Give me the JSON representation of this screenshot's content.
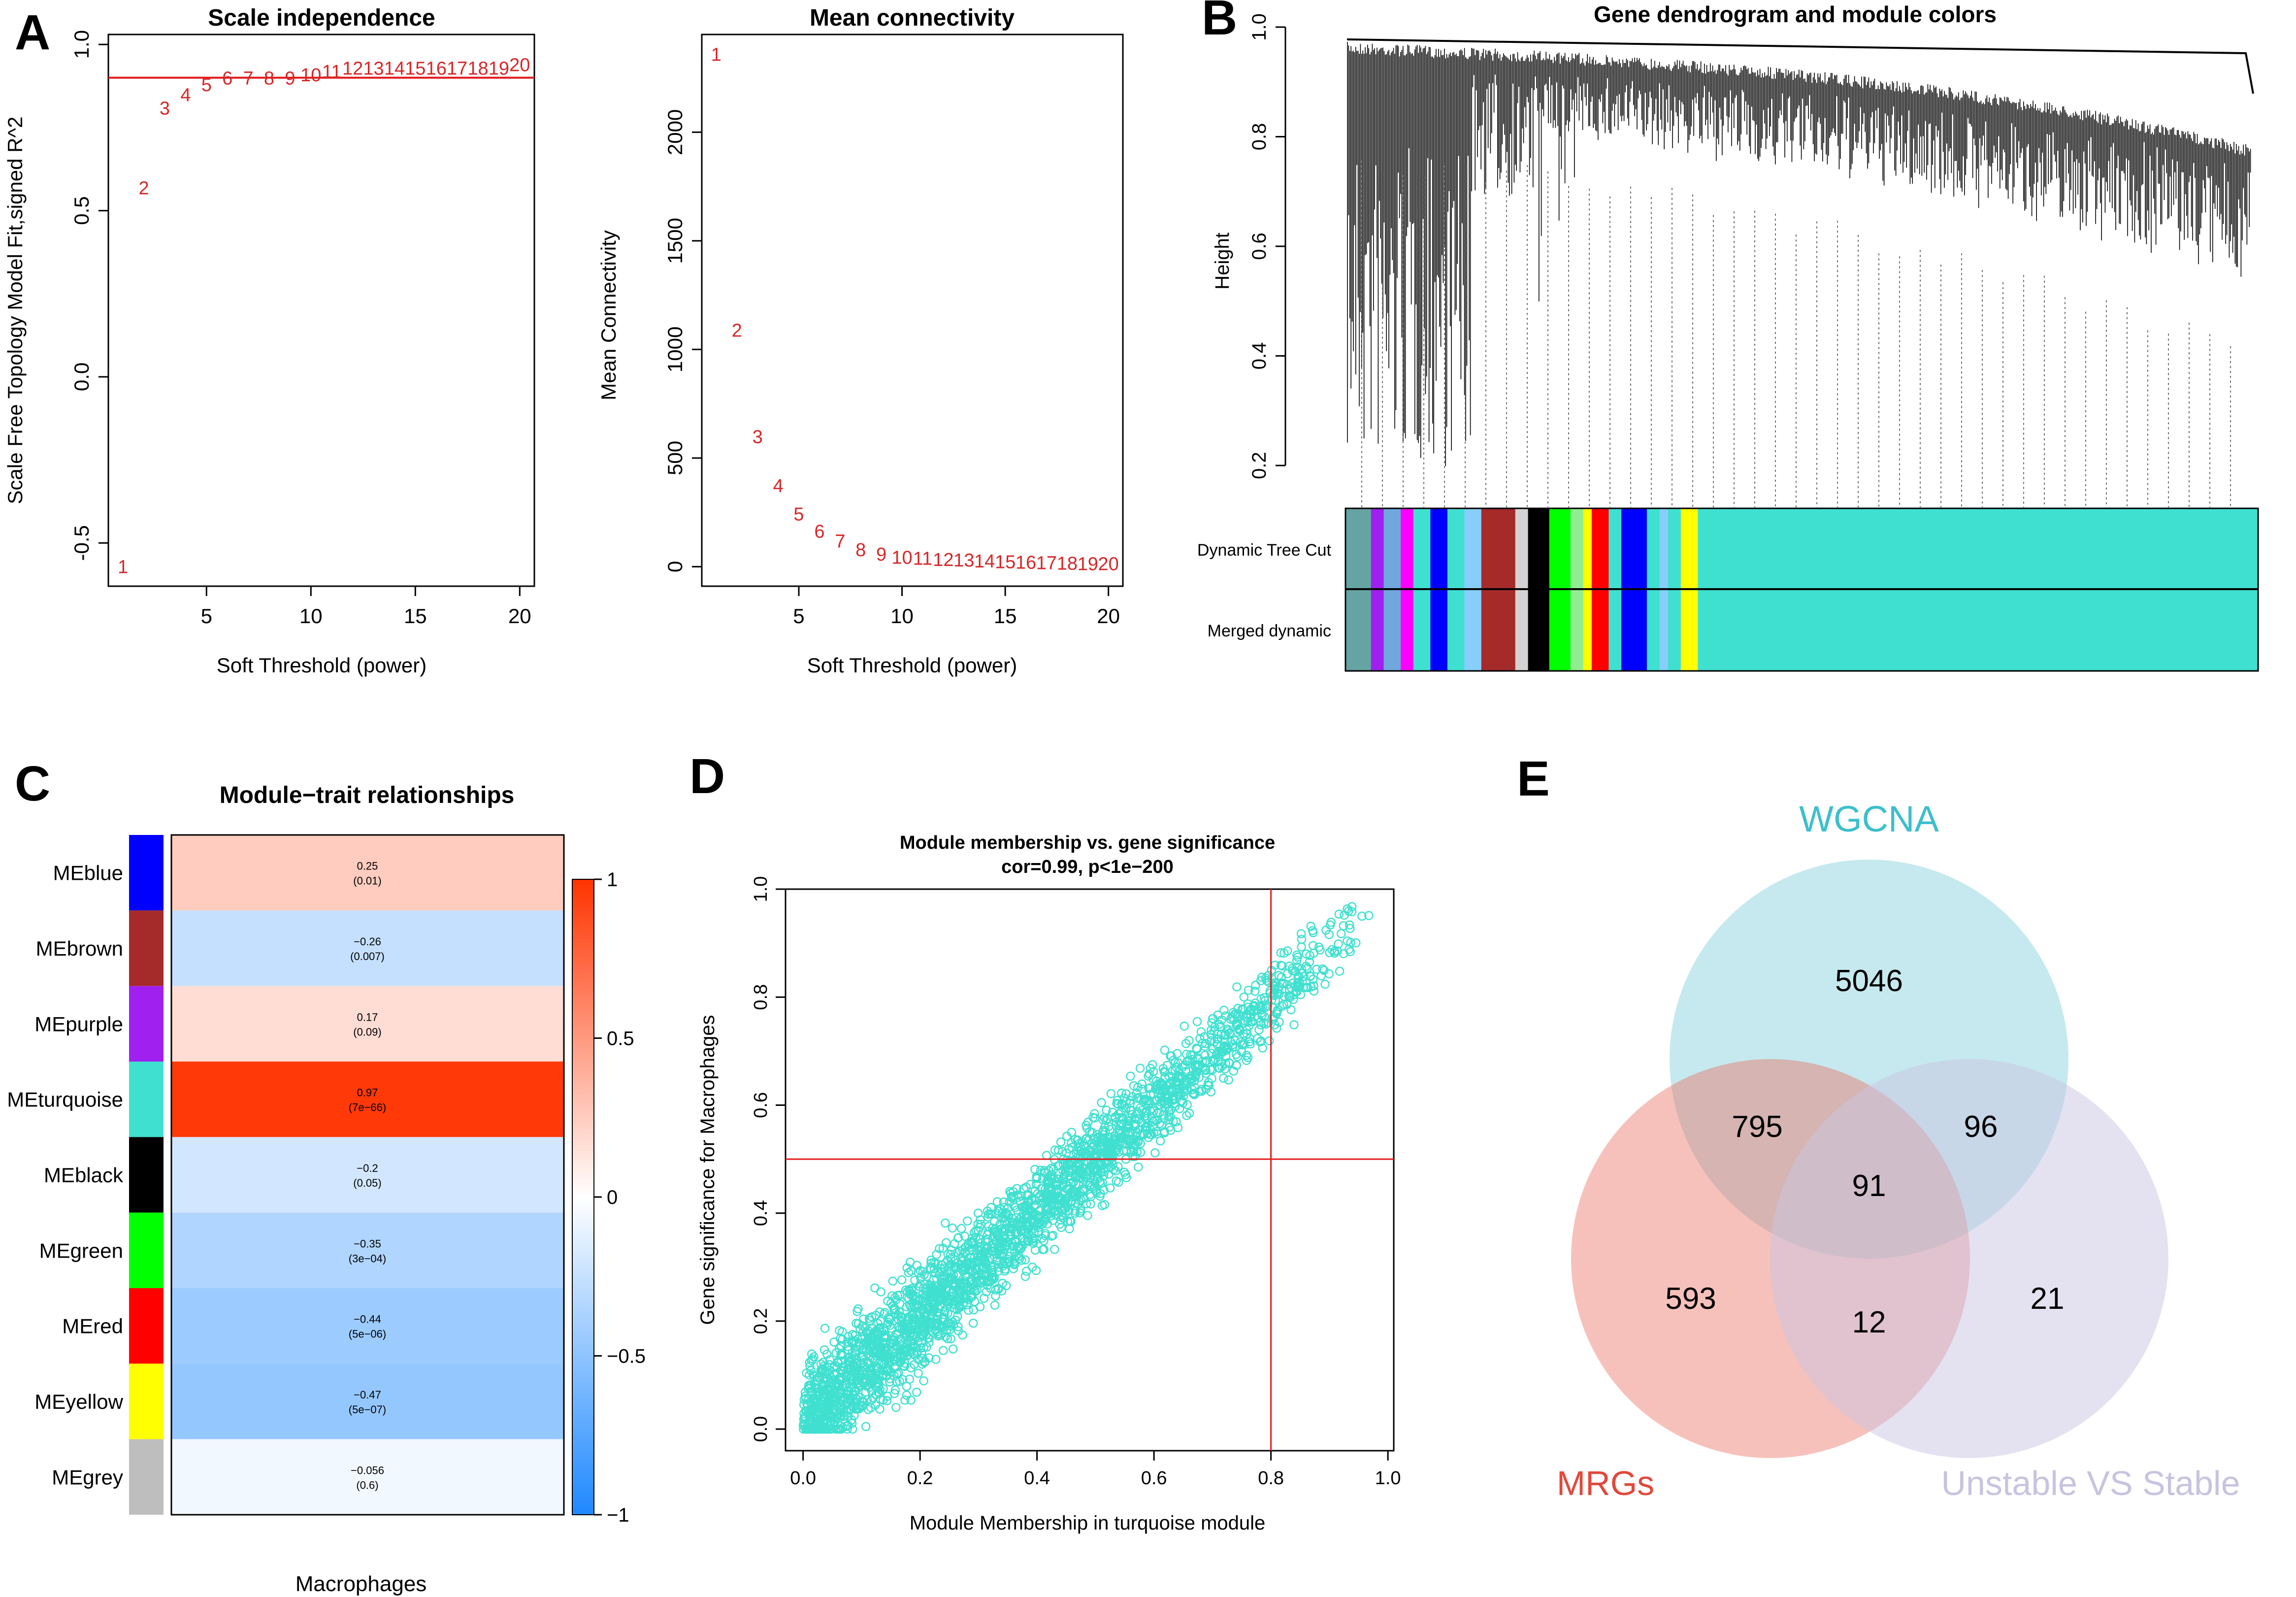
{
  "panel_letters": [
    "A",
    "B",
    "C",
    "D",
    "E"
  ],
  "chart_data": [
    {
      "id": "A1",
      "type": "scatter",
      "title": "Scale independence",
      "xlabel": "Soft Threshold (power)",
      "ylabel": "Scale Free Topology Model Fit,signed R^2",
      "xlim": [
        0.3,
        20.7
      ],
      "ylim": [
        -0.63,
        1.03
      ],
      "xticks": [
        5,
        10,
        15,
        20
      ],
      "yticks": [
        -0.5,
        0.0,
        0.5,
        1.0
      ],
      "ytick_labels": [
        "-0.5",
        "0.0",
        "0.5",
        "1.0"
      ],
      "threshold_line": 0.9,
      "marker_color": "#d62728",
      "line_color": "#e31a1c",
      "x": [
        1,
        2,
        3,
        4,
        5,
        6,
        7,
        8,
        9,
        10,
        11,
        12,
        13,
        14,
        15,
        16,
        17,
        18,
        19,
        20
      ],
      "y": [
        -0.57,
        0.57,
        0.81,
        0.85,
        0.88,
        0.9,
        0.9,
        0.9,
        0.9,
        0.91,
        0.92,
        0.93,
        0.93,
        0.93,
        0.93,
        0.93,
        0.93,
        0.93,
        0.93,
        0.94
      ],
      "labels": [
        "1",
        "2",
        "3",
        "4",
        "5",
        "6",
        "7",
        "8",
        "9",
        "10",
        "11",
        "12",
        "13",
        "14",
        "15",
        "16",
        "17",
        "18",
        "19",
        "20"
      ]
    },
    {
      "id": "A2",
      "type": "scatter",
      "title": "Mean connectivity",
      "xlabel": "Soft Threshold (power)",
      "ylabel": "Mean Connectivity",
      "xlim": [
        0.3,
        20.7
      ],
      "ylim": [
        -90,
        2450
      ],
      "xticks": [
        5,
        10,
        15,
        20
      ],
      "yticks": [
        0,
        500,
        1000,
        1500,
        2000
      ],
      "marker_color": "#d62728",
      "x": [
        1,
        2,
        3,
        4,
        5,
        6,
        7,
        8,
        9,
        10,
        11,
        12,
        13,
        14,
        15,
        16,
        17,
        18,
        19,
        20
      ],
      "y": [
        2360,
        1090,
        600,
        375,
        245,
        165,
        120,
        80,
        60,
        45,
        40,
        35,
        32,
        28,
        25,
        22,
        20,
        18,
        16,
        15
      ],
      "labels": [
        "1",
        "2",
        "3",
        "4",
        "5",
        "6",
        "7",
        "8",
        "9",
        "10",
        "11",
        "12",
        "13",
        "14",
        "15",
        "16",
        "17",
        "18",
        "19",
        "20"
      ]
    },
    {
      "id": "B",
      "type": "dendrogram",
      "title": "Gene dendrogram and module colors",
      "ylabel": "Height",
      "ylim": [
        0.2,
        1.0
      ],
      "yticks": [
        0.2,
        0.4,
        0.6,
        0.8,
        1.0
      ],
      "row_labels": [
        "Dynamic Tree Cut",
        "Merged dynamic"
      ],
      "module_bar": [
        {
          "color": "#66a3a3",
          "width": 3
        },
        {
          "color": "#a020f0",
          "width": 1.5
        },
        {
          "color": "#6fa8dc",
          "width": 2
        },
        {
          "color": "#ff00ff",
          "width": 1.5
        },
        {
          "color": "#40e0d0",
          "width": 2
        },
        {
          "color": "#0000ff",
          "width": 2
        },
        {
          "color": "#40e0d0",
          "width": 2
        },
        {
          "color": "#87cefa",
          "width": 2
        },
        {
          "color": "#a52a2a",
          "width": 4
        },
        {
          "color": "#d3d3d3",
          "width": 1.5
        },
        {
          "color": "#000000",
          "width": 2.5
        },
        {
          "color": "#00ff00",
          "width": 2.5
        },
        {
          "color": "#90ee90",
          "width": 1.5
        },
        {
          "color": "#ffff00",
          "width": 1
        },
        {
          "color": "#ff0000",
          "width": 2
        },
        {
          "color": "#40e0d0",
          "width": 1.5
        },
        {
          "color": "#0000ff",
          "width": 3
        },
        {
          "color": "#40e0d0",
          "width": 1.5
        },
        {
          "color": "#87cefa",
          "width": 1
        },
        {
          "color": "#40e0d0",
          "width": 1.5
        },
        {
          "color": "#ffff00",
          "width": 2
        },
        {
          "color": "#40e0d0",
          "width": 66
        }
      ]
    },
    {
      "id": "C",
      "type": "heatmap",
      "title": "Module−trait relationships",
      "xlabel": "Macrophages",
      "colorbar_ticks": [
        "1",
        "0.5",
        "0",
        "−0.5",
        "−1"
      ],
      "colorbar_values": [
        1,
        0.5,
        0,
        -0.5,
        -1
      ],
      "rows": [
        {
          "module": "MEblue",
          "color": "#0000ff",
          "cor": 0.25,
          "cor_label": "0.25",
          "p": "(0.01)"
        },
        {
          "module": "MEbrown",
          "color": "#a52a2a",
          "cor": -0.26,
          "cor_label": "−0.26",
          "p": "(0.007)"
        },
        {
          "module": "MEpurple",
          "color": "#a020f0",
          "cor": 0.17,
          "cor_label": "0.17",
          "p": "(0.09)"
        },
        {
          "module": "MEturquoise",
          "color": "#40e0d0",
          "cor": 0.97,
          "cor_label": "0.97",
          "p": "(7e−66)"
        },
        {
          "module": "MEblack",
          "color": "#000000",
          "cor": -0.2,
          "cor_label": "−0.2",
          "p": "(0.05)"
        },
        {
          "module": "MEgreen",
          "color": "#00ff00",
          "cor": -0.35,
          "cor_label": "−0.35",
          "p": "(3e−04)"
        },
        {
          "module": "MEred",
          "color": "#ff0000",
          "cor": -0.44,
          "cor_label": "−0.44",
          "p": "(5e−06)"
        },
        {
          "module": "MEyellow",
          "color": "#ffff00",
          "cor": -0.47,
          "cor_label": "−0.47",
          "p": "(5e−07)"
        },
        {
          "module": "MEgrey",
          "color": "#bebebe",
          "cor": -0.056,
          "cor_label": "−0.056",
          "p": "(0.6)"
        }
      ]
    },
    {
      "id": "D",
      "type": "scatter",
      "title": "Module membership vs. gene significance",
      "subtitle": "cor=0.99, p<1e−200",
      "xlabel": "Module Membership in turquoise module",
      "ylabel": "Gene significance for  Macrophages",
      "xlim": [
        -0.03,
        1.01
      ],
      "ylim": [
        -0.04,
        1.0
      ],
      "xticks": [
        0.0,
        0.2,
        0.4,
        0.6,
        0.8,
        1.0
      ],
      "xtick_labels": [
        "0.0",
        "0.2",
        "0.4",
        "0.6",
        "0.8",
        "1.0"
      ],
      "yticks": [
        0.0,
        0.2,
        0.4,
        0.6,
        0.8,
        1.0
      ],
      "ytick_labels": [
        "0.0",
        "0.2",
        "0.4",
        "0.6",
        "0.8",
        "1.0"
      ],
      "vline": 0.8,
      "hline": 0.5,
      "point_color": "#40e0d0",
      "line_color": "#e31a1c",
      "trend": {
        "x_range": [
          0.0,
          0.97
        ],
        "slope": 0.98,
        "intercept": 0.01,
        "spread": 0.035,
        "n_points": 2600
      }
    },
    {
      "id": "E",
      "type": "venn",
      "sets": [
        {
          "name": "WGCNA",
          "color": "#66c6d2"
        },
        {
          "name": "MRGs",
          "color": "#ec6b5e"
        },
        {
          "name": "Unstable VS Stable",
          "color": "#c9c5e2"
        }
      ],
      "regions": [
        {
          "sets": [
            "WGCNA"
          ],
          "value": 5046
        },
        {
          "sets": [
            "MRGs"
          ],
          "value": 593
        },
        {
          "sets": [
            "Unstable VS Stable"
          ],
          "value": 21
        },
        {
          "sets": [
            "WGCNA",
            "MRGs"
          ],
          "value": 795
        },
        {
          "sets": [
            "WGCNA",
            "Unstable VS Stable"
          ],
          "value": 96
        },
        {
          "sets": [
            "MRGs",
            "Unstable VS Stable"
          ],
          "value": 12
        },
        {
          "sets": [
            "WGCNA",
            "MRGs",
            "Unstable VS Stable"
          ],
          "value": 91
        }
      ]
    }
  ]
}
